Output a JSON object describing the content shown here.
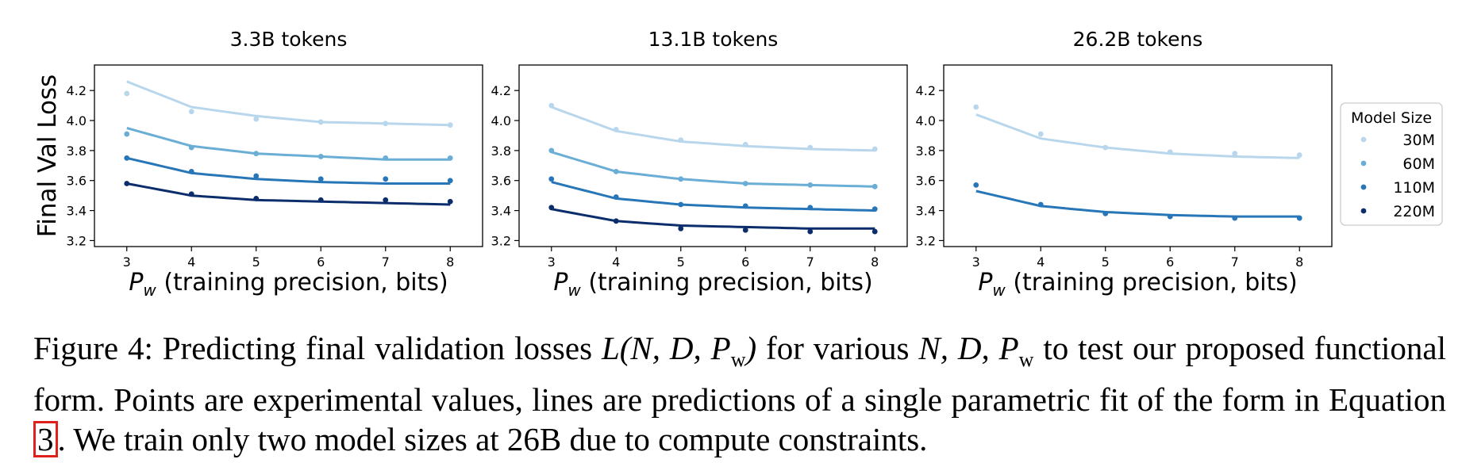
{
  "chart_data": [
    {
      "type": "scatter",
      "title": "3.3B tokens",
      "ylabel": "Final Val Loss",
      "xlabel_symbol": "P",
      "xlabel_subscript": "w",
      "xlabel_rest": " (training precision, bits)",
      "x": [
        3,
        4,
        5,
        6,
        7,
        8
      ],
      "xlim": [
        2.5,
        8.5
      ],
      "ylim": [
        3.16,
        4.37
      ],
      "yticks": [
        3.2,
        3.4,
        3.6,
        3.8,
        4.0,
        4.2
      ],
      "ytick_labels": [
        "3.2",
        "3.4",
        "3.6",
        "3.8",
        "4.0",
        "4.2"
      ],
      "xtick_labels": [
        "3",
        "4",
        "5",
        "6",
        "7",
        "8"
      ],
      "series": [
        {
          "name": "30M",
          "color": "#b9d7ec",
          "points": [
            4.18,
            4.06,
            4.01,
            3.99,
            3.98,
            3.97
          ],
          "fit": [
            4.26,
            4.09,
            4.03,
            3.99,
            3.98,
            3.97
          ]
        },
        {
          "name": "60M",
          "color": "#6aaed6",
          "points": [
            3.91,
            3.82,
            3.78,
            3.76,
            3.75,
            3.75
          ],
          "fit": [
            3.95,
            3.83,
            3.78,
            3.76,
            3.74,
            3.74
          ]
        },
        {
          "name": "110M",
          "color": "#2676b8",
          "points": [
            3.75,
            3.66,
            3.63,
            3.61,
            3.61,
            3.6
          ],
          "fit": [
            3.75,
            3.65,
            3.61,
            3.59,
            3.58,
            3.58
          ]
        },
        {
          "name": "220M",
          "color": "#0b2d6b",
          "points": [
            3.58,
            3.51,
            3.48,
            3.47,
            3.47,
            3.46
          ],
          "fit": [
            3.58,
            3.5,
            3.47,
            3.46,
            3.45,
            3.44
          ]
        }
      ]
    },
    {
      "type": "scatter",
      "title": "13.1B tokens",
      "ylabel": "",
      "xlabel_symbol": "P",
      "xlabel_subscript": "w",
      "xlabel_rest": " (training precision, bits)",
      "x": [
        3,
        4,
        5,
        6,
        7,
        8
      ],
      "xlim": [
        2.5,
        8.5
      ],
      "ylim": [
        3.16,
        4.37
      ],
      "yticks": [
        3.2,
        3.4,
        3.6,
        3.8,
        4.0,
        4.2
      ],
      "ytick_labels": [
        "3.2",
        "3.4",
        "3.6",
        "3.8",
        "4.0",
        "4.2"
      ],
      "xtick_labels": [
        "3",
        "4",
        "5",
        "6",
        "7",
        "8"
      ],
      "series": [
        {
          "name": "30M",
          "color": "#b9d7ec",
          "points": [
            4.1,
            3.94,
            3.87,
            3.84,
            3.82,
            3.81
          ],
          "fit": [
            4.09,
            3.93,
            3.86,
            3.83,
            3.81,
            3.8
          ]
        },
        {
          "name": "60M",
          "color": "#6aaed6",
          "points": [
            3.8,
            3.66,
            3.61,
            3.58,
            3.57,
            3.56
          ],
          "fit": [
            3.79,
            3.66,
            3.61,
            3.58,
            3.57,
            3.56
          ]
        },
        {
          "name": "110M",
          "color": "#2676b8",
          "points": [
            3.61,
            3.49,
            3.44,
            3.43,
            3.42,
            3.41
          ],
          "fit": [
            3.59,
            3.48,
            3.44,
            3.42,
            3.41,
            3.4
          ]
        },
        {
          "name": "220M",
          "color": "#0b2d6b",
          "points": [
            3.42,
            3.33,
            3.28,
            3.27,
            3.26,
            3.26
          ],
          "fit": [
            3.41,
            3.33,
            3.3,
            3.29,
            3.28,
            3.28
          ]
        }
      ]
    },
    {
      "type": "scatter",
      "title": "26.2B tokens",
      "ylabel": "",
      "xlabel_symbol": "P",
      "xlabel_subscript": "w",
      "xlabel_rest": " (training precision, bits)",
      "x": [
        3,
        4,
        5,
        6,
        7,
        8
      ],
      "xlim": [
        2.5,
        8.5
      ],
      "ylim": [
        3.16,
        4.37
      ],
      "yticks": [
        3.2,
        3.4,
        3.6,
        3.8,
        4.0,
        4.2
      ],
      "ytick_labels": [
        "3.2",
        "3.4",
        "3.6",
        "3.8",
        "4.0",
        "4.2"
      ],
      "xtick_labels": [
        "3",
        "4",
        "5",
        "6",
        "7",
        "8"
      ],
      "series": [
        {
          "name": "30M",
          "color": "#b9d7ec",
          "points": [
            4.09,
            3.91,
            3.82,
            3.79,
            3.78,
            3.77
          ],
          "fit": [
            4.04,
            3.88,
            3.82,
            3.78,
            3.76,
            3.75
          ]
        },
        {
          "name": "110M",
          "color": "#2676b8",
          "points": [
            3.57,
            3.44,
            3.38,
            3.36,
            3.35,
            3.35
          ],
          "fit": [
            3.53,
            3.43,
            3.39,
            3.37,
            3.36,
            3.36
          ]
        }
      ]
    }
  ],
  "legend": {
    "title": "Model Size",
    "placement": "right",
    "items": [
      {
        "label": "30M",
        "color": "#b9d7ec"
      },
      {
        "label": "60M",
        "color": "#6aaed6"
      },
      {
        "label": "110M",
        "color": "#2676b8"
      },
      {
        "label": "220M",
        "color": "#0b2d6b"
      }
    ]
  },
  "caption": {
    "label": "Figure 4:",
    "text_1": " Predicting final validation losses ",
    "math_1": "L(N, D, P",
    "math_1_sub": "w",
    "math_1_end": ")",
    "text_2": " for various ",
    "math_2": "N, D, P",
    "math_2_sub": "w",
    "text_3": " to test our proposed functional form. Points are experimental values, lines are predictions of a single parametric fit of the form in Equation ",
    "ref": "3",
    "text_4": ". We train only two model sizes at 26B due to compute constraints."
  }
}
